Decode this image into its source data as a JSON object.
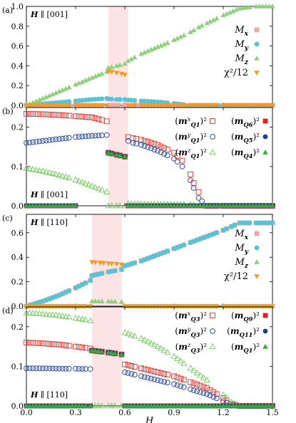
{
  "chart_data": [
    {
      "type": "scatter",
      "panel_label": "(a)",
      "field_label": "H ∥ [001]",
      "xlim": [
        0,
        1.5
      ],
      "ylim": [
        0,
        1.0
      ],
      "yticks": [
        "0.0",
        "0.2",
        "0.4",
        "0.6",
        "0.8",
        "1.0"
      ],
      "xticks": [],
      "shaded_region": [
        0.5,
        0.62
      ],
      "legend_position": "right",
      "grid": false,
      "series": [
        {
          "name": "M_x",
          "color": "#f4a6a6",
          "marker": "square",
          "x": [
            0.0,
            0.1,
            0.2,
            0.3,
            0.4,
            0.5,
            0.6,
            0.62,
            0.8,
            1.0,
            1.2,
            1.5
          ],
          "y": [
            0,
            0,
            0,
            0,
            0,
            0,
            0,
            0,
            0,
            0,
            0,
            0
          ]
        },
        {
          "name": "M_y",
          "color": "#56c3d6",
          "marker": "circle",
          "x": [
            0.0,
            0.1,
            0.2,
            0.3,
            0.4,
            0.49,
            0.5,
            0.55,
            0.6,
            0.62,
            0.7,
            0.8,
            0.9,
            1.0,
            1.05,
            1.2,
            1.5
          ],
          "y": [
            0.0,
            0.015,
            0.03,
            0.045,
            0.06,
            0.07,
            0.065,
            0.06,
            0.06,
            0.055,
            0.045,
            0.035,
            0.02,
            0.0,
            0.0,
            0.0,
            0.0
          ]
        },
        {
          "name": "M_z",
          "color": "#8fd07f",
          "marker": "triangle-up",
          "x": [
            0.0,
            0.1,
            0.2,
            0.3,
            0.4,
            0.49,
            0.5,
            0.55,
            0.6,
            0.62,
            0.7,
            0.8,
            0.9,
            1.0,
            1.05,
            1.1,
            1.2,
            1.3,
            1.4,
            1.5
          ],
          "y": [
            0.0,
            0.07,
            0.14,
            0.21,
            0.28,
            0.34,
            0.38,
            0.4,
            0.42,
            0.45,
            0.52,
            0.59,
            0.66,
            0.74,
            0.79,
            0.83,
            0.91,
            0.98,
            1.0,
            1.0
          ]
        },
        {
          "name": "χ²/12",
          "color": "#f59a24",
          "marker": "triangle-down",
          "x": [
            0.0,
            0.1,
            0.2,
            0.3,
            0.4,
            0.49,
            0.5,
            0.52,
            0.55,
            0.58,
            0.6,
            0.62,
            0.7,
            0.9,
            1.2,
            1.5
          ],
          "y": [
            0,
            0,
            0,
            0,
            0,
            0,
            0.34,
            0.34,
            0.33,
            0.32,
            0.31,
            0,
            0,
            0,
            0,
            0
          ]
        }
      ]
    },
    {
      "type": "scatter",
      "panel_label": "(b)",
      "field_label": "H ∥ [001]",
      "xlim": [
        0,
        1.5
      ],
      "ylim": [
        0,
        0.25
      ],
      "yticks": [
        "0.0",
        "0.1",
        "0.2"
      ],
      "xticks": [],
      "shaded_region": [
        0.5,
        0.62
      ],
      "legend_position": "top-right",
      "grid": false,
      "series": [
        {
          "name": "(m^x_Q1)²",
          "color": "#e0403a",
          "marker": "square-open",
          "x": [
            0.0,
            0.1,
            0.2,
            0.3,
            0.4,
            0.49,
            0.5,
            0.55,
            0.6,
            0.62,
            0.65,
            0.7,
            0.8,
            0.9,
            0.95,
            1.0,
            1.02,
            1.05,
            1.1,
            1.2,
            1.5
          ],
          "y": [
            0.234,
            0.233,
            0.231,
            0.228,
            0.225,
            0.215,
            0.135,
            0.13,
            0.125,
            0.175,
            0.172,
            0.168,
            0.155,
            0.135,
            0.115,
            0.08,
            0.058,
            0.035,
            0.0,
            0.0,
            0.0
          ]
        },
        {
          "name": "(m^y_Q1)²",
          "color": "#2f4fa3",
          "marker": "circle-open",
          "x": [
            0.0,
            0.1,
            0.2,
            0.3,
            0.4,
            0.49,
            0.5,
            0.55,
            0.6,
            0.62,
            0.65,
            0.7,
            0.8,
            0.9,
            0.95,
            1.0,
            1.02,
            1.05,
            1.1,
            1.2,
            1.5
          ],
          "y": [
            0.16,
            0.165,
            0.17,
            0.175,
            0.178,
            0.18,
            0.135,
            0.13,
            0.125,
            0.165,
            0.16,
            0.155,
            0.14,
            0.12,
            0.1,
            0.065,
            0.045,
            0.02,
            0.0,
            0.0,
            0.0
          ]
        },
        {
          "name": "(m^z_Q1)²",
          "color": "#7ecf6c",
          "marker": "triangle-open",
          "x": [
            0.0,
            0.1,
            0.2,
            0.3,
            0.4,
            0.49,
            0.5,
            0.55,
            0.6,
            0.62,
            0.8,
            1.0,
            1.05,
            1.2,
            1.5
          ],
          "y": [
            0.095,
            0.088,
            0.078,
            0.066,
            0.05,
            0.035,
            0.0,
            0.0,
            0.0,
            0.005,
            0.004,
            0.003,
            0.0,
            0.0,
            0.0
          ]
        },
        {
          "name": "(m_Q6)²",
          "color": "#e0202a",
          "marker": "square",
          "x": [
            0.0,
            0.3,
            0.5,
            0.55,
            0.6,
            0.62,
            1.0,
            1.5
          ],
          "y": [
            0,
            0,
            0.135,
            0.13,
            0.125,
            0,
            0,
            0
          ]
        },
        {
          "name": "(m_Q5)²",
          "color": "#1f3a93",
          "marker": "circle",
          "x": [
            0.0,
            0.3,
            0.5,
            0.55,
            0.6,
            0.62,
            1.0,
            1.5
          ],
          "y": [
            0,
            0,
            0.135,
            0.13,
            0.125,
            0,
            0,
            0
          ]
        },
        {
          "name": "(m_Q4)²",
          "color": "#3aa83a",
          "marker": "triangle-up",
          "x": [
            0.0,
            0.3,
            0.5,
            0.55,
            0.6,
            0.62,
            1.0,
            1.5
          ],
          "y": [
            0,
            0,
            0.135,
            0.13,
            0.125,
            0,
            0,
            0
          ]
        }
      ]
    },
    {
      "type": "scatter",
      "panel_label": "(c)",
      "field_label": "H ∥ [110]",
      "xlim": [
        0,
        1.5
      ],
      "ylim": [
        0,
        0.75
      ],
      "yticks": [
        "0.0",
        "0.2",
        "0.4",
        "0.6"
      ],
      "xticks": [],
      "shaded_region": [
        0.4,
        0.58
      ],
      "legend_position": "right",
      "grid": false,
      "series": [
        {
          "name": "M_x",
          "color": "#f4a6a6",
          "marker": "square",
          "x": [
            0.0,
            0.1,
            0.2,
            0.3,
            0.39,
            0.4,
            0.5,
            0.58,
            0.6,
            0.7,
            0.8,
            0.9,
            1.0,
            1.1,
            1.2,
            1.25,
            1.3,
            1.4,
            1.5
          ],
          "y": [
            0.0,
            0.04,
            0.09,
            0.15,
            0.21,
            0.25,
            0.28,
            0.3,
            0.33,
            0.37,
            0.42,
            0.47,
            0.52,
            0.57,
            0.62,
            0.65,
            0.68,
            0.68,
            0.68
          ]
        },
        {
          "name": "M_y",
          "color": "#56c3d6",
          "marker": "circle",
          "x": [
            0.0,
            0.1,
            0.2,
            0.3,
            0.39,
            0.4,
            0.5,
            0.58,
            0.6,
            0.7,
            0.8,
            0.9,
            1.0,
            1.1,
            1.2,
            1.25,
            1.3,
            1.4,
            1.5
          ],
          "y": [
            0.0,
            0.04,
            0.09,
            0.15,
            0.21,
            0.25,
            0.28,
            0.3,
            0.33,
            0.37,
            0.42,
            0.47,
            0.52,
            0.57,
            0.62,
            0.65,
            0.68,
            0.68,
            0.68
          ]
        },
        {
          "name": "M_z",
          "color": "#8fd07f",
          "marker": "triangle-up",
          "x": [
            0.0,
            0.3,
            0.39,
            0.4,
            0.5,
            0.58,
            0.6,
            0.9,
            1.2,
            1.5
          ],
          "y": [
            0,
            0,
            0,
            0.04,
            0.04,
            0.035,
            0,
            0,
            0,
            0
          ]
        },
        {
          "name": "χ²/12",
          "color": "#f59a24",
          "marker": "triangle-down",
          "x": [
            0.0,
            0.3,
            0.39,
            0.4,
            0.45,
            0.5,
            0.55,
            0.58,
            0.6,
            0.9,
            1.2,
            1.5
          ],
          "y": [
            0,
            0,
            0,
            0.36,
            0.355,
            0.35,
            0.345,
            0.34,
            0,
            0,
            0,
            0
          ]
        }
      ]
    },
    {
      "type": "scatter",
      "panel_label": "(d)",
      "field_label": "H ∥ [110]",
      "xlim": [
        0,
        1.5
      ],
      "ylim": [
        0,
        0.25
      ],
      "yticks": [
        "0.0",
        "0.1",
        "0.2"
      ],
      "xticks": [
        "0.0",
        "0.3",
        "0.6",
        "0.9",
        "1.2",
        "1.5"
      ],
      "xlabel": "H",
      "shaded_region": [
        0.4,
        0.58
      ],
      "legend_position": "top-right",
      "grid": false,
      "series": [
        {
          "name": "(m^x_Q3)²",
          "color": "#e0403a",
          "marker": "square-open",
          "x": [
            0.0,
            0.1,
            0.2,
            0.3,
            0.39,
            0.4,
            0.5,
            0.58,
            0.6,
            0.7,
            0.8,
            0.9,
            1.0,
            1.1,
            1.2,
            1.25,
            1.3,
            1.5
          ],
          "y": [
            0.16,
            0.158,
            0.155,
            0.15,
            0.145,
            0.14,
            0.135,
            0.13,
            0.105,
            0.095,
            0.085,
            0.075,
            0.06,
            0.045,
            0.02,
            0.005,
            0.0,
            0.0
          ]
        },
        {
          "name": "(m^y_Q3)²",
          "color": "#2f4fa3",
          "marker": "circle-open",
          "x": [
            0.0,
            0.1,
            0.2,
            0.3,
            0.39,
            0.4,
            0.5,
            0.58,
            0.6,
            0.7,
            0.8,
            0.9,
            1.0,
            1.1,
            1.2,
            1.25,
            1.3,
            1.5
          ],
          "y": [
            0.095,
            0.095,
            0.094,
            0.094,
            0.093,
            0.14,
            0.135,
            0.13,
            0.085,
            0.075,
            0.065,
            0.055,
            0.042,
            0.03,
            0.012,
            0.002,
            0.0,
            0.0
          ]
        },
        {
          "name": "(m^z_Q3)²",
          "color": "#7ecf6c",
          "marker": "triangle-open",
          "x": [
            0.0,
            0.1,
            0.2,
            0.3,
            0.39,
            0.4,
            0.5,
            0.58,
            0.6,
            0.7,
            0.8,
            0.9,
            1.0,
            1.1,
            1.2,
            1.25,
            1.3,
            1.5
          ],
          "y": [
            0.235,
            0.232,
            0.228,
            0.222,
            0.215,
            0.0,
            0.0,
            0.0,
            0.185,
            0.17,
            0.15,
            0.125,
            0.095,
            0.065,
            0.028,
            0.01,
            0.0,
            0.0
          ]
        },
        {
          "name": "(m_Q9)²",
          "color": "#e0202a",
          "marker": "square",
          "x": [
            0.0,
            0.39,
            0.4,
            0.5,
            0.58,
            0.6,
            1.5
          ],
          "y": [
            0,
            0,
            0.14,
            0.135,
            0.13,
            0,
            0
          ]
        },
        {
          "name": "(m_Q11)²",
          "color": "#1f3a93",
          "marker": "circle",
          "x": [
            0.0,
            0.39,
            0.4,
            0.5,
            0.58,
            0.6,
            1.5
          ],
          "y": [
            0,
            0,
            0.14,
            0.135,
            0.13,
            0,
            0
          ]
        },
        {
          "name": "(m_Q1)²",
          "color": "#3aa83a",
          "marker": "triangle-up",
          "x": [
            0.0,
            0.39,
            0.4,
            0.5,
            0.58,
            0.6,
            1.5
          ],
          "y": [
            0,
            0,
            0.14,
            0.135,
            0.13,
            0,
            0
          ]
        }
      ]
    }
  ]
}
